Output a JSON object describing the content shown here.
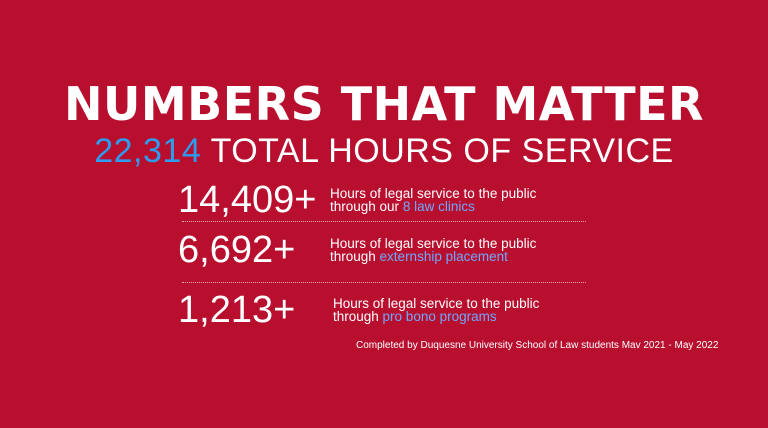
{
  "headline": "NUMBERS THAT MATTER",
  "subhead": {
    "number": "22,314",
    "text": "TOTAL HOURS OF SERVICE"
  },
  "stats": [
    {
      "value": "14,409+",
      "line1": "Hours of legal service to the public",
      "line2_prefix": "through our ",
      "line2_highlight": "8 law clinics"
    },
    {
      "value": "6,692+",
      "line1": "Hours of legal service to the public",
      "line2_prefix": "through ",
      "line2_highlight": "externship placement"
    },
    {
      "value": "1,213+",
      "line1": "Hours of legal service to the public",
      "line2_prefix": "through ",
      "line2_highlight": "pro bono programs"
    }
  ],
  "footnote": "Completed by Duquesne University School of Law students  Mav 2021 - May 2022",
  "colors": {
    "background": "#b80f2f",
    "accent_number": "#2d9bf0",
    "highlight_text": "#6fa8ff"
  }
}
